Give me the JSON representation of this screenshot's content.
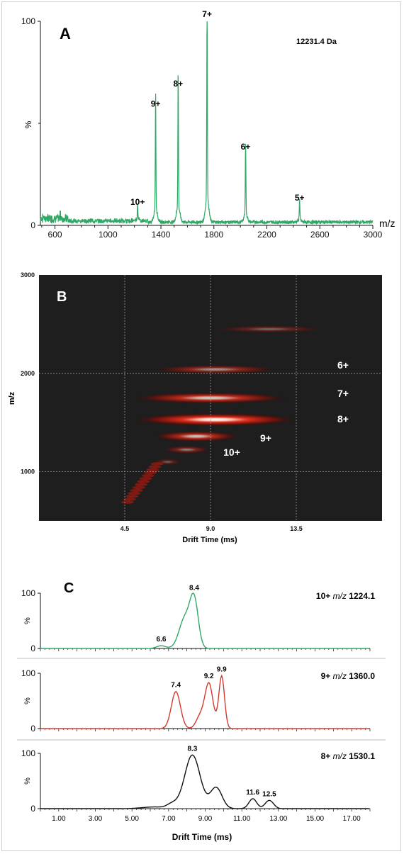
{
  "panels": {
    "A": {
      "letter": "A",
      "mass_label": "12231.4 Da",
      "ylabel": "%",
      "xunit": "m/z"
    },
    "B": {
      "letter": "B",
      "ylabel": "m/z",
      "xlabel": "Drift Time (ms)"
    },
    "C": {
      "letter": "C",
      "xlabel": "Drift Time (ms)"
    }
  },
  "chart_data": [
    {
      "type": "line",
      "panel": "A",
      "title": "",
      "xlabel": "m/z",
      "ylabel": "%",
      "xlim": [
        490,
        3000
      ],
      "ylim": [
        0,
        100
      ],
      "xticks": [
        600,
        1000,
        1400,
        1800,
        2200,
        2600,
        3000
      ],
      "yticks": [
        0,
        100
      ],
      "color": "#2fa866",
      "peaks": [
        {
          "label": "10+",
          "mz": 1224.1,
          "intensity": 8
        },
        {
          "label": "9+",
          "mz": 1360.0,
          "intensity": 56
        },
        {
          "label": "8+",
          "mz": 1530.1,
          "intensity": 66
        },
        {
          "label": "7+",
          "mz": 1748.5,
          "intensity": 100
        },
        {
          "label": "6+",
          "mz": 2039.5,
          "intensity": 35
        },
        {
          "label": "5+",
          "mz": 2447.0,
          "intensity": 10
        }
      ]
    },
    {
      "type": "heatmap",
      "panel": "B",
      "xlabel": "Drift Time (ms)",
      "ylabel": "m/z",
      "xlim": [
        0,
        18
      ],
      "ylim": [
        500,
        3000
      ],
      "xticks": [
        4.5,
        9.0,
        13.5
      ],
      "yticks": [
        1000,
        2000,
        3000
      ],
      "grid": true,
      "background": "#1e1e1e",
      "charge_labels": [
        "6+",
        "7+",
        "8+",
        "9+",
        "10+"
      ],
      "bands": [
        {
          "mz": 2450,
          "x_from": 9.2,
          "x_to": 15.0,
          "intensity": 0.35
        },
        {
          "mz": 2040,
          "x_from": 6.0,
          "x_to": 12.5,
          "intensity": 0.55
        },
        {
          "mz": 1750,
          "x_from": 5.0,
          "x_to": 13.0,
          "intensity": 0.8
        },
        {
          "mz": 1530,
          "x_from": 5.0,
          "x_to": 13.5,
          "intensity": 1.0
        },
        {
          "mz": 1360,
          "x_from": 6.0,
          "x_to": 10.5,
          "intensity": 0.75
        },
        {
          "mz": 1224,
          "x_from": 6.5,
          "x_to": 9.0,
          "intensity": 0.45
        },
        {
          "mz": 1100,
          "x_from": 6.0,
          "x_to": 7.5,
          "intensity": 0.3
        }
      ]
    },
    {
      "type": "line",
      "panel": "C1",
      "label_charge": "10+",
      "label_mz_prefix": "m/z",
      "label_mz": "1224.1",
      "xlim": [
        0,
        18
      ],
      "ylim": [
        0,
        100
      ],
      "yticks": [
        0,
        100
      ],
      "color": "#2fa866",
      "peak_labels": [
        {
          "x": 6.6,
          "text": "6.6"
        },
        {
          "x": 8.4,
          "text": "8.4"
        }
      ]
    },
    {
      "type": "line",
      "panel": "C2",
      "label_charge": "9+",
      "label_mz_prefix": "m/z",
      "label_mz": "1360.0",
      "xlim": [
        0,
        18
      ],
      "ylim": [
        0,
        100
      ],
      "yticks": [
        0,
        100
      ],
      "color": "#d23a2c",
      "peak_labels": [
        {
          "x": 7.4,
          "text": "7.4"
        },
        {
          "x": 9.2,
          "text": "9.2"
        },
        {
          "x": 9.9,
          "text": "9.9"
        }
      ]
    },
    {
      "type": "line",
      "panel": "C3",
      "label_charge": "8+",
      "label_mz_prefix": "m/z",
      "label_mz": "1530.1",
      "xlabel": "Drift Time (ms)",
      "xlim": [
        0,
        18
      ],
      "ylim": [
        0,
        100
      ],
      "xticks": [
        1.0,
        3.0,
        5.0,
        7.0,
        9.0,
        11.0,
        13.0,
        15.0,
        17.0
      ],
      "xtick_labels": [
        "1.00",
        "3.00",
        "5.00",
        "7.00",
        "9.00",
        "11.00",
        "13.00",
        "15.00",
        "17.00"
      ],
      "yticks": [
        0,
        100
      ],
      "color": "#111111",
      "peak_labels": [
        {
          "x": 8.3,
          "text": "8.3"
        },
        {
          "x": 11.6,
          "text": "11.6"
        },
        {
          "x": 12.5,
          "text": "12.5"
        }
      ]
    }
  ],
  "heatmap_tick_labels": [
    "4.5",
    "9.0",
    "13.5"
  ]
}
